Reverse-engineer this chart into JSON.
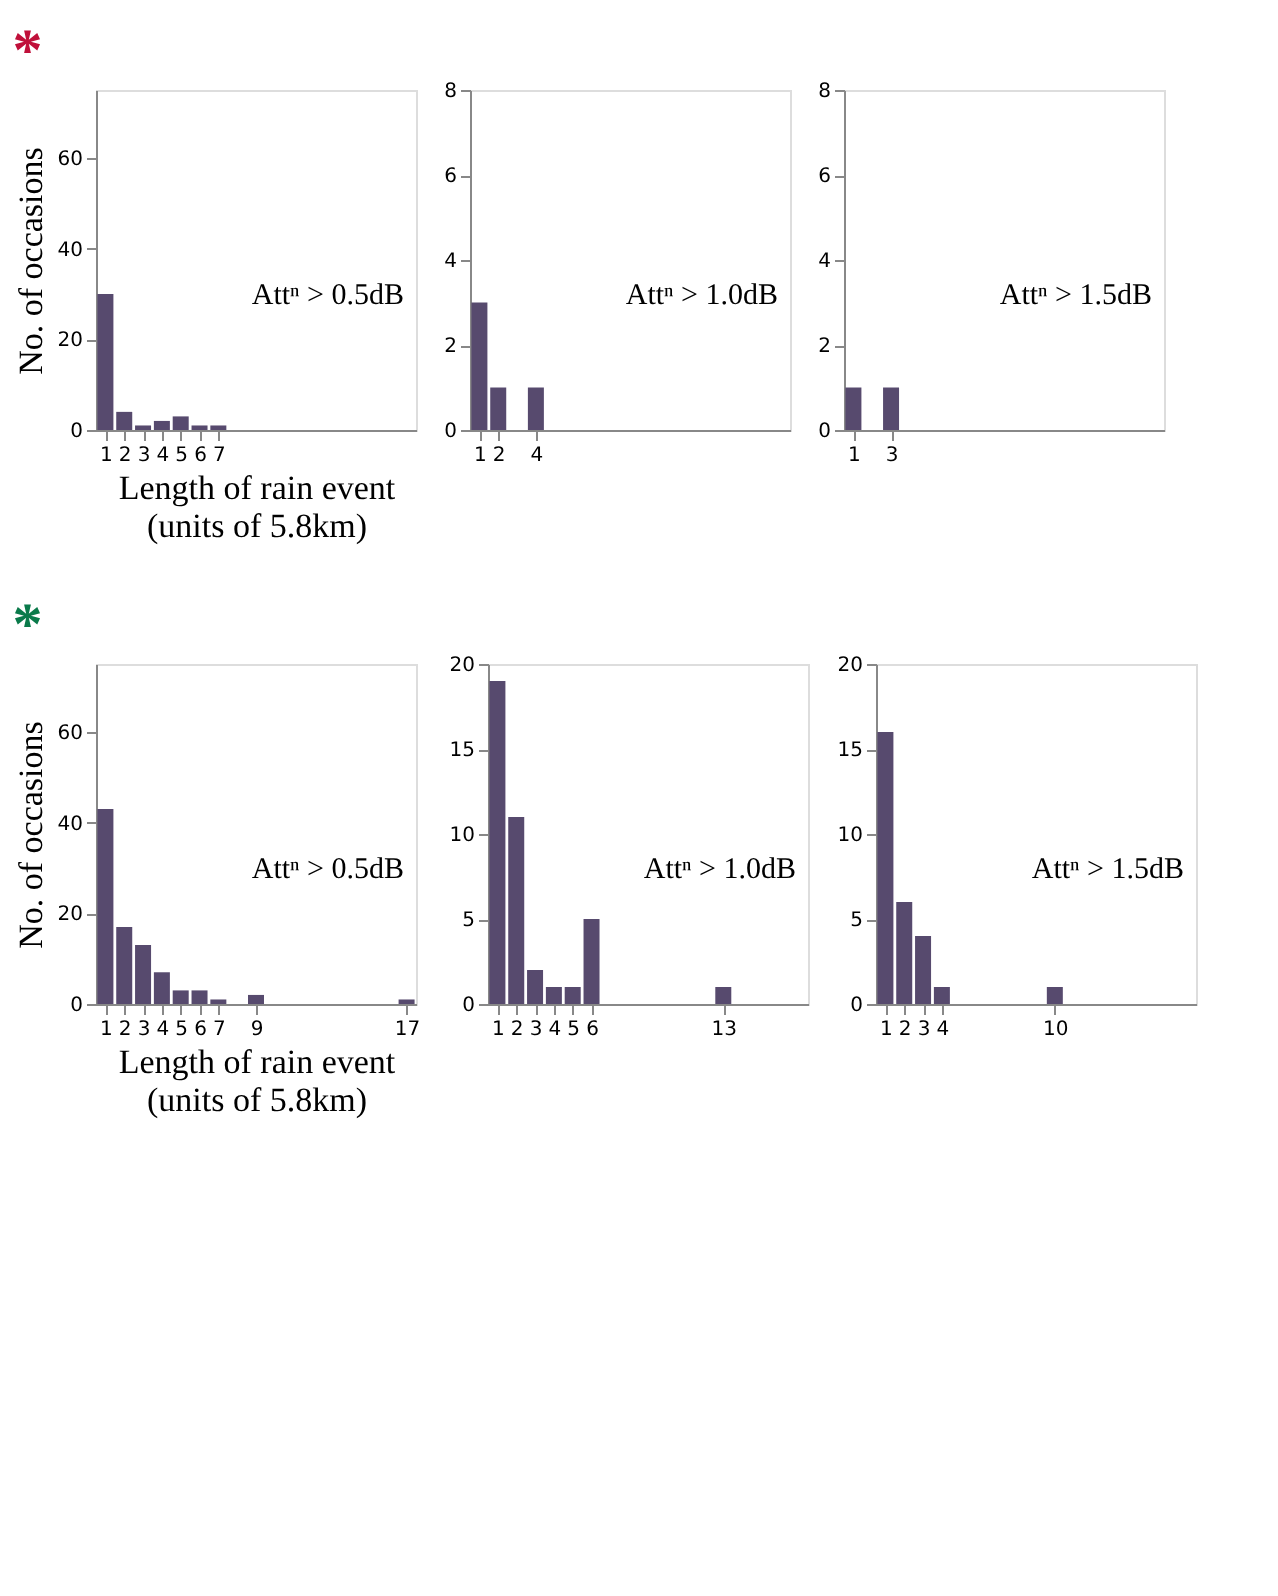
{
  "chart_data": [
    {
      "type": "bar",
      "title": "*",
      "color": "#574a6e",
      "ylabel": "No. of occasions",
      "xlabel": "Length of rain event\n(units of 5.8km)",
      "annotations": [
        "Attⁿ > 0.5dB"
      ],
      "x": [
        1,
        2,
        3,
        4,
        5,
        6,
        7
      ],
      "values": [
        30,
        4,
        1,
        2,
        3,
        1,
        1
      ],
      "xlim": [
        0.5,
        17.5
      ],
      "xticks": [
        1,
        2,
        3,
        4,
        5,
        6,
        7
      ],
      "ylim": [
        0,
        75
      ],
      "yticks": [
        0,
        20,
        40,
        60
      ],
      "grid": false
    },
    {
      "type": "bar",
      "color": "#574a6e",
      "annotations": [
        "Attⁿ > 1.0dB"
      ],
      "x": [
        1,
        2,
        4
      ],
      "values": [
        3,
        1,
        1
      ],
      "xlim": [
        0.5,
        17.5
      ],
      "xticks": [
        1,
        2,
        4
      ],
      "ylim": [
        0,
        8
      ],
      "yticks": [
        0,
        2,
        4,
        6,
        8
      ],
      "grid": false
    },
    {
      "type": "bar",
      "color": "#574a6e",
      "annotations": [
        "Attⁿ > 1.5dB"
      ],
      "x": [
        1,
        3
      ],
      "values": [
        1,
        1
      ],
      "xlim": [
        0.5,
        17.5
      ],
      "xticks": [
        1,
        3
      ],
      "ylim": [
        0,
        8
      ],
      "yticks": [
        0,
        2,
        4,
        6,
        8
      ],
      "grid": false
    },
    {
      "type": "bar",
      "title": "*",
      "color": "#574a6e",
      "ylabel": "No. of occasions",
      "xlabel": "Length of rain event\n(units of 5.8km)",
      "annotations": [
        "Attⁿ > 0.5dB"
      ],
      "x": [
        1,
        2,
        3,
        4,
        5,
        6,
        7,
        9,
        17
      ],
      "values": [
        43,
        17,
        13,
        7,
        3,
        3,
        1,
        2,
        1
      ],
      "xlim": [
        0.5,
        17.5
      ],
      "xticks": [
        1,
        2,
        3,
        4,
        5,
        6,
        7,
        9,
        17
      ],
      "ylim": [
        0,
        75
      ],
      "yticks": [
        0,
        20,
        40,
        60
      ],
      "grid": false
    },
    {
      "type": "bar",
      "color": "#574a6e",
      "annotations": [
        "Attⁿ > 1.0dB"
      ],
      "x": [
        1,
        2,
        3,
        4,
        5,
        6,
        13
      ],
      "values": [
        19,
        11,
        2,
        1,
        1,
        5,
        1
      ],
      "xlim": [
        0.5,
        17.5
      ],
      "xticks": [
        1,
        2,
        3,
        4,
        5,
        6,
        13
      ],
      "ylim": [
        0,
        20
      ],
      "yticks": [
        0,
        5,
        10,
        15,
        20
      ],
      "grid": false
    },
    {
      "type": "bar",
      "color": "#574a6e",
      "annotations": [
        "Attⁿ > 1.5dB"
      ],
      "x": [
        1,
        2,
        3,
        4,
        10
      ],
      "values": [
        16,
        6,
        4,
        1,
        1
      ],
      "xlim": [
        0.5,
        17.5
      ],
      "xticks": [
        1,
        2,
        3,
        4,
        10
      ],
      "ylim": [
        0,
        20
      ],
      "yticks": [
        0,
        5,
        10,
        15,
        20
      ],
      "grid": false
    }
  ]
}
